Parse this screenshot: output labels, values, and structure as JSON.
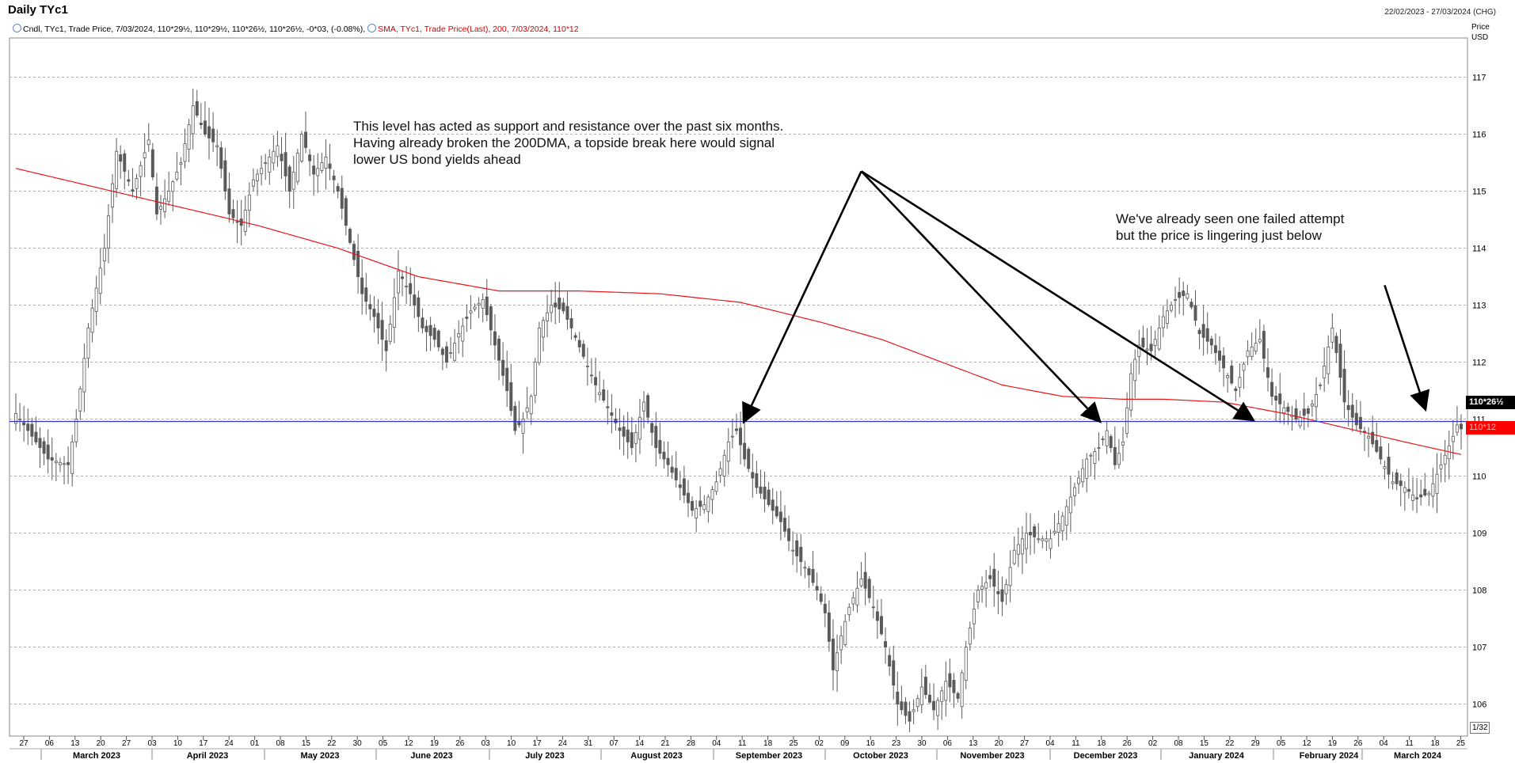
{
  "header": {
    "title": "Daily TYc1",
    "date_range": "22/02/2023 - 27/03/2024 (CHG)",
    "legend_candles": "Cndl, TYc1, Trade Price, 7/03/2024, 110*29½, 110*29½, 110*26½, 110*26½, -0*03, (-0.08%),",
    "legend_sma": "SMA, TYc1, Trade Price(Last),  200, 7/03/2024, 110*12"
  },
  "price_axis": {
    "label": "Price",
    "unit": "USD",
    "scale_note": "1/32"
  },
  "tags": {
    "last_price": "110*26½",
    "sma_value": "110*12"
  },
  "annotations": {
    "left": [
      "This level has acted as support and resistance over the past six months.",
      "Having already broken the 200DMA, a topside break here would signal",
      "lower US bond yields ahead"
    ],
    "right": [
      "We've already seen one failed attempt",
      "but the price is lingering just below"
    ]
  },
  "colors": {
    "candle": "#5a5a5a",
    "sma": "#e8141a",
    "level": "#3333cc",
    "grid": "#9a9a9a"
  },
  "chart_data": {
    "type": "candlestick",
    "instrument": "TYc1",
    "ylim": [
      105.3,
      117.5
    ],
    "yticks": [
      106,
      107,
      108,
      109,
      110,
      111,
      112,
      113,
      114,
      115,
      116,
      117
    ],
    "horizontal_level": 110.96,
    "x_day_ticks": [
      "27",
      "06",
      "13",
      "20",
      "27",
      "03",
      "10",
      "17",
      "24",
      "01",
      "08",
      "15",
      "22",
      "30",
      "05",
      "12",
      "19",
      "26",
      "03",
      "10",
      "17",
      "24",
      "31",
      "07",
      "14",
      "21",
      "28",
      "04",
      "11",
      "18",
      "25",
      "02",
      "09",
      "16",
      "23",
      "30",
      "06",
      "13",
      "20",
      "27",
      "04",
      "11",
      "18",
      "26",
      "02",
      "08",
      "15",
      "22",
      "29",
      "05",
      "12",
      "19",
      "26",
      "04",
      "11",
      "18",
      "25"
    ],
    "x_month_labels": [
      "March 2023",
      "April 2023",
      "May 2023",
      "June 2023",
      "July 2023",
      "August 2023",
      "September 2023",
      "October 2023",
      "November 2023",
      "December 2023",
      "January 2024",
      "February 2024",
      "March 2024"
    ],
    "close_waypoints": [
      [
        0,
        111.1
      ],
      [
        3,
        110.8
      ],
      [
        8,
        110.3
      ],
      [
        13,
        110.2
      ],
      [
        15,
        111.0
      ],
      [
        18,
        112.6
      ],
      [
        22,
        114.0
      ],
      [
        25,
        115.7
      ],
      [
        29,
        115.0
      ],
      [
        33,
        115.9
      ],
      [
        35,
        114.6
      ],
      [
        38,
        115.0
      ],
      [
        41,
        115.5
      ],
      [
        44,
        116.5
      ],
      [
        47,
        116.0
      ],
      [
        50,
        115.8
      ],
      [
        53,
        114.6
      ],
      [
        56,
        114.4
      ],
      [
        59,
        115.2
      ],
      [
        62,
        115.5
      ],
      [
        65,
        115.8
      ],
      [
        68,
        115.0
      ],
      [
        71,
        116.0
      ],
      [
        74,
        115.3
      ],
      [
        77,
        115.6
      ],
      [
        80,
        115.0
      ],
      [
        83,
        114.1
      ],
      [
        86,
        113.2
      ],
      [
        89,
        112.8
      ],
      [
        92,
        112.2
      ],
      [
        95,
        113.6
      ],
      [
        98,
        113.2
      ],
      [
        101,
        112.6
      ],
      [
        104,
        112.4
      ],
      [
        107,
        112.0
      ],
      [
        110,
        112.5
      ],
      [
        113,
        112.9
      ],
      [
        116,
        113.1
      ],
      [
        119,
        112.3
      ],
      [
        122,
        111.5
      ],
      [
        124,
        110.8
      ],
      [
        126,
        111.0
      ],
      [
        128,
        111.4
      ],
      [
        130,
        112.6
      ],
      [
        133,
        113.0
      ],
      [
        136,
        112.9
      ],
      [
        138,
        112.6
      ],
      [
        141,
        112.1
      ],
      [
        144,
        111.6
      ],
      [
        147,
        111.2
      ],
      [
        150,
        110.8
      ],
      [
        153,
        110.5
      ],
      [
        156,
        111.3
      ],
      [
        159,
        110.5
      ],
      [
        162,
        110.2
      ],
      [
        165,
        109.8
      ],
      [
        168,
        109.4
      ],
      [
        171,
        109.5
      ],
      [
        174,
        109.9
      ],
      [
        177,
        110.6
      ],
      [
        179,
        110.8
      ],
      [
        181,
        110.3
      ],
      [
        184,
        109.8
      ],
      [
        187,
        109.5
      ],
      [
        190,
        109.2
      ],
      [
        193,
        108.7
      ],
      [
        196,
        108.4
      ],
      [
        199,
        108.0
      ],
      [
        201,
        107.6
      ],
      [
        203,
        106.6
      ],
      [
        205,
        107.2
      ],
      [
        207,
        107.7
      ],
      [
        210,
        108.2
      ],
      [
        213,
        107.7
      ],
      [
        216,
        107.0
      ],
      [
        219,
        106.0
      ],
      [
        222,
        105.7
      ],
      [
        225,
        106.3
      ],
      [
        228,
        105.9
      ],
      [
        231,
        106.4
      ],
      [
        234,
        106.1
      ],
      [
        236,
        107.0
      ],
      [
        239,
        108.0
      ],
      [
        242,
        108.2
      ],
      [
        245,
        107.8
      ],
      [
        248,
        108.7
      ],
      [
        251,
        109.0
      ],
      [
        254,
        108.9
      ],
      [
        257,
        108.9
      ],
      [
        260,
        109.3
      ],
      [
        263,
        109.8
      ],
      [
        266,
        110.3
      ],
      [
        269,
        110.5
      ],
      [
        271,
        110.8
      ],
      [
        273,
        110.2
      ],
      [
        275,
        110.6
      ],
      [
        277,
        111.8
      ],
      [
        279,
        112.3
      ],
      [
        282,
        112.2
      ],
      [
        285,
        112.8
      ],
      [
        288,
        113.1
      ],
      [
        291,
        113.2
      ],
      [
        294,
        112.5
      ],
      [
        297,
        112.3
      ],
      [
        300,
        111.9
      ],
      [
        303,
        111.5
      ],
      [
        306,
        112.2
      ],
      [
        309,
        112.4
      ],
      [
        312,
        111.4
      ],
      [
        315,
        111.2
      ],
      [
        318,
        111.0
      ],
      [
        321,
        111.1
      ],
      [
        324,
        111.6
      ],
      [
        327,
        112.6
      ],
      [
        330,
        111.3
      ],
      [
        333,
        110.9
      ],
      [
        336,
        110.7
      ],
      [
        339,
        110.3
      ],
      [
        342,
        109.9
      ],
      [
        345,
        109.8
      ],
      [
        348,
        109.6
      ],
      [
        351,
        109.7
      ],
      [
        354,
        110.2
      ],
      [
        357,
        110.7
      ],
      [
        358,
        110.9
      ],
      [
        359,
        110.83
      ]
    ],
    "sma200": {
      "name": "SMA 200",
      "points": [
        [
          0,
          115.4
        ],
        [
          30,
          114.9
        ],
        [
          60,
          114.4
        ],
        [
          80,
          114.0
        ],
        [
          100,
          113.5
        ],
        [
          120,
          113.25
        ],
        [
          140,
          113.25
        ],
        [
          160,
          113.2
        ],
        [
          180,
          113.05
        ],
        [
          200,
          112.7
        ],
        [
          215,
          112.4
        ],
        [
          230,
          112.0
        ],
        [
          245,
          111.6
        ],
        [
          260,
          111.4
        ],
        [
          275,
          111.35
        ],
        [
          285,
          111.35
        ],
        [
          300,
          111.3
        ],
        [
          315,
          111.1
        ],
        [
          330,
          110.85
        ],
        [
          345,
          110.6
        ],
        [
          359,
          110.38
        ]
      ]
    },
    "arrows": [
      {
        "from": [
          210,
          115.35
        ],
        "to": [
          181,
          110.98
        ]
      },
      {
        "from": [
          210,
          115.35
        ],
        "to": [
          269,
          110.98
        ]
      },
      {
        "from": [
          210,
          115.35
        ],
        "to": [
          307,
          111.0
        ]
      },
      {
        "from": [
          340,
          113.35
        ],
        "to": [
          350,
          111.2
        ]
      }
    ]
  }
}
